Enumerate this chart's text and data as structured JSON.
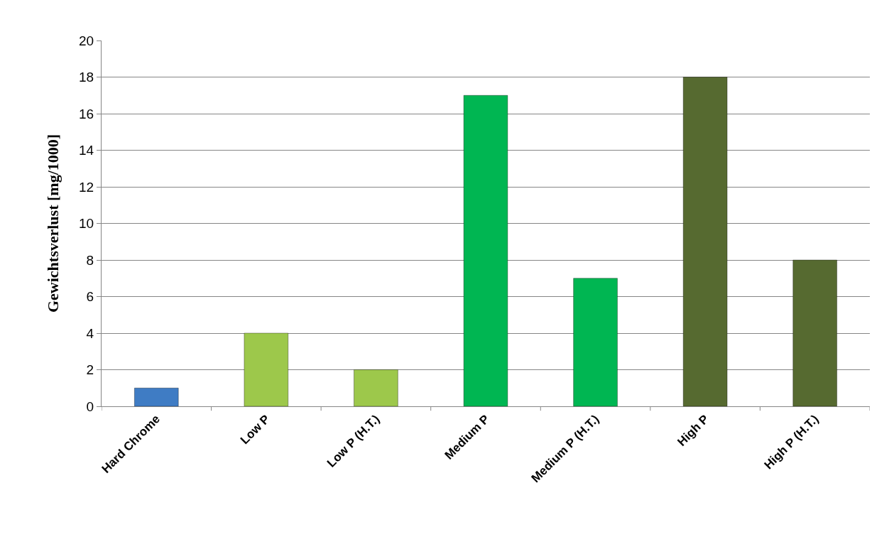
{
  "chart_data": {
    "type": "bar",
    "ylabel": "Gewichtsverlust [mg/1000]",
    "categories": [
      "Hard Chrome",
      "Low P",
      "Low P (H.T.)",
      "Medium P",
      "Medium P (H.T.)",
      "High P",
      "High P (H.T.)"
    ],
    "values": [
      1,
      4,
      2,
      17,
      7,
      18,
      8
    ],
    "colors": [
      "#3f7cc4",
      "#9dc84b",
      "#9dc84b",
      "#00b652",
      "#00b652",
      "#566a30",
      "#566a30"
    ],
    "ylim": [
      0,
      20
    ],
    "yticks": [
      0,
      2,
      4,
      6,
      8,
      10,
      12,
      14,
      16,
      18,
      20
    ],
    "grid": "y"
  }
}
